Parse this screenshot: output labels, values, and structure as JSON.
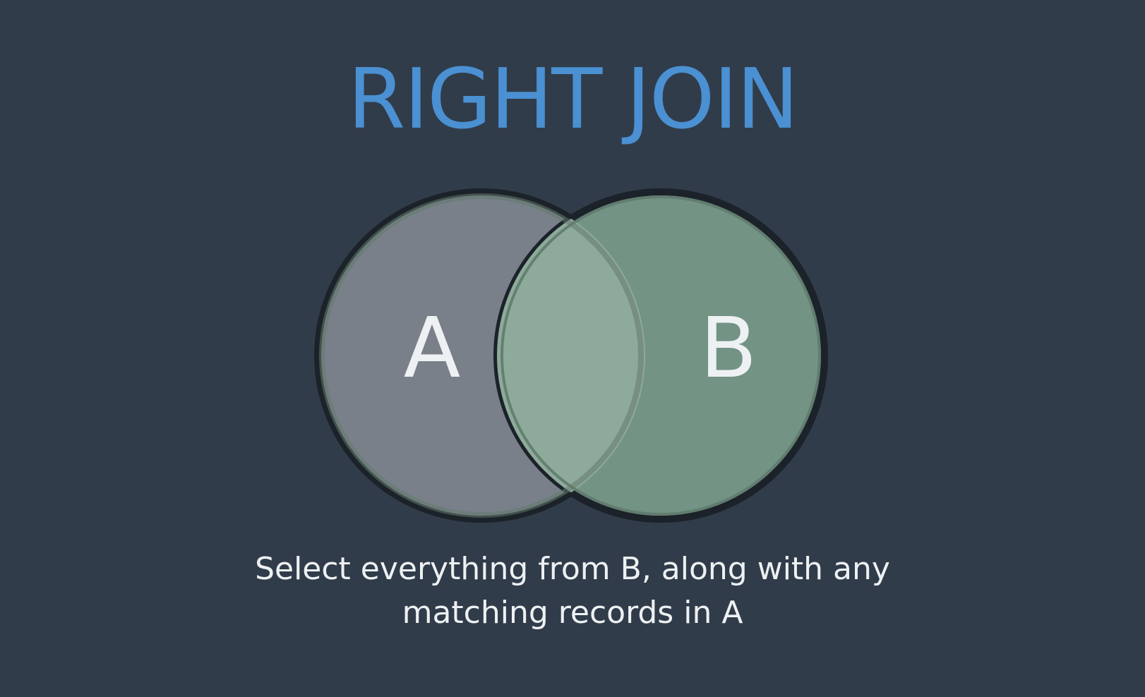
{
  "title": "RIGHT JOIN",
  "sets": {
    "a": {
      "label": "A"
    },
    "b": {
      "label": "B"
    }
  },
  "caption": {
    "line1": "Select everything from B, along with any",
    "line2": "matching records in A"
  },
  "colors": {
    "background": "#313c4a",
    "title": "#4a90d2",
    "set_a_fill": "#79808a",
    "set_b_fill": "#739384",
    "intersection_fill": "#8eaa9b",
    "outline": "#1c2229",
    "text": "#eef1f3"
  }
}
